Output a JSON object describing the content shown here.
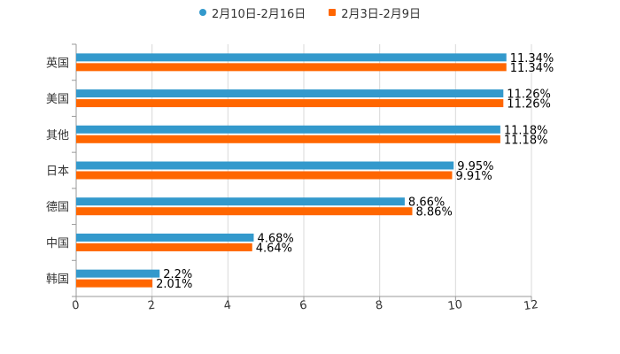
{
  "chart_data": {
    "type": "bar",
    "orientation": "horizontal",
    "categories": [
      "英国",
      "美国",
      "其他",
      "日本",
      "德国",
      "中国",
      "韩国"
    ],
    "series": [
      {
        "name": "2月10日-2月16日",
        "color": "#3399cc",
        "marker": "circle",
        "values": [
          11.34,
          11.26,
          11.18,
          9.95,
          8.66,
          4.68,
          2.2
        ],
        "labels": [
          "11.34%",
          "11.26%",
          "11.18%",
          "9.95%",
          "8.66%",
          "4.68%",
          "2.2%"
        ]
      },
      {
        "name": "2月3日-2月9日",
        "color": "#ff6600",
        "marker": "square",
        "values": [
          11.34,
          11.26,
          11.18,
          9.91,
          8.86,
          4.64,
          2.01
        ],
        "labels": [
          "11.34%",
          "11.26%",
          "11.18%",
          "9.91%",
          "8.86%",
          "4.64%",
          "2.01%"
        ]
      }
    ],
    "xlim": [
      0,
      12
    ],
    "xticks": [
      "0",
      "2",
      "4",
      "6",
      "8",
      "10",
      "12"
    ],
    "grid": true,
    "legend_position": "top-center",
    "title": "",
    "xlabel": "",
    "ylabel": ""
  }
}
